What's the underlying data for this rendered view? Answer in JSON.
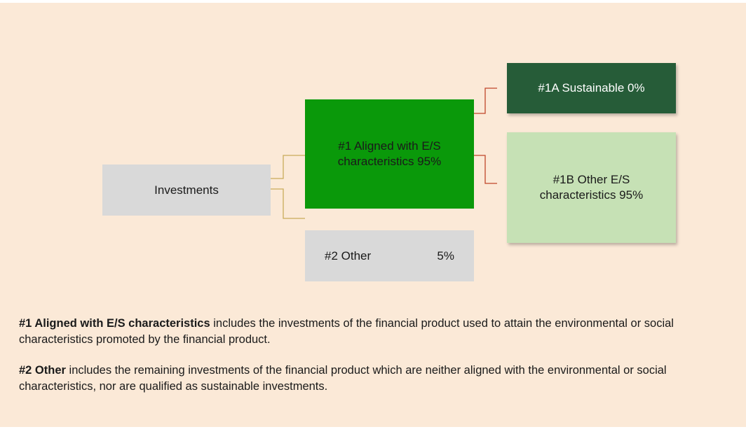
{
  "nodes": [
    {
      "label": "Investments"
    },
    {
      "label": "#1 Aligned with E/S characteristics 95%"
    },
    {
      "label": "#2 Other",
      "value": "5%"
    },
    {
      "label": "#1A Sustainable 0%"
    },
    {
      "label": "#1B Other E/S characteristics 95%"
    }
  ],
  "notes": [
    {
      "term": "#1 Aligned with E/S characteristics",
      "text": " includes the investments of the financial product used to attain the environmental or social characteristics promoted by the financial product."
    },
    {
      "term": "#2 Other",
      "text": " includes the remaining investments of the financial product which are neither aligned with the environmental or social characteristics, nor are qualified as sustainable investments."
    }
  ]
}
